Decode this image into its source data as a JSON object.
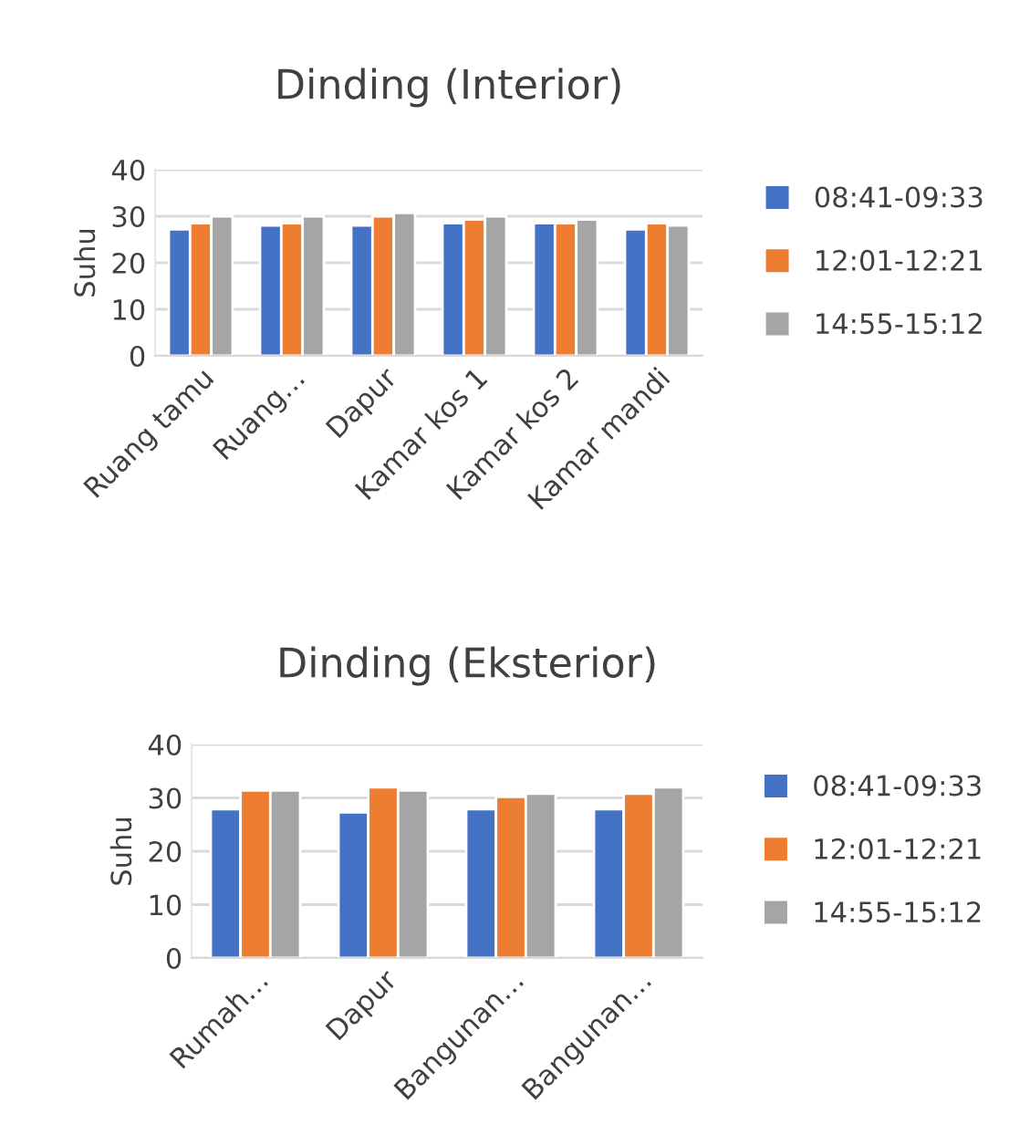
{
  "chart_data": [
    {
      "type": "bar",
      "title": "Dinding (Interior)",
      "ylabel": "Suhu",
      "categories": [
        "Ruang tamu",
        "Ruang…",
        "Dapur",
        "Kamar kos 1",
        "Kamar kos 2",
        "Kamar mandi"
      ],
      "series": [
        {
          "name": "08:41-09:33",
          "color": "#4472c4",
          "values": [
            27.2,
            28,
            28,
            28.5,
            28.5,
            27.2
          ]
        },
        {
          "name": "12:01-12:21",
          "color": "#ed7d31",
          "values": [
            28.5,
            28.5,
            30,
            29.3,
            28.5,
            28.5
          ]
        },
        {
          "name": "14:55-15:12",
          "color": "#a5a5a5",
          "values": [
            30,
            30,
            30.7,
            30,
            29.3,
            28
          ]
        }
      ],
      "ylim": [
        0,
        40
      ],
      "yticks": [
        0,
        10,
        20,
        30,
        40
      ],
      "grid": "y",
      "legend": "right"
    },
    {
      "type": "bar",
      "title": "Dinding (Eksterior)",
      "ylabel": "Suhu",
      "categories": [
        "Rumah…",
        "Dapur",
        "Bangunan…",
        "Bangunan…"
      ],
      "series": [
        {
          "name": "08:41-09:33",
          "color": "#4472c4",
          "values": [
            27.9,
            27.3,
            27.9,
            27.9
          ]
        },
        {
          "name": "12:01-12:21",
          "color": "#ed7d31",
          "values": [
            31.4,
            32,
            30.2,
            30.8
          ]
        },
        {
          "name": "14:55-15:12",
          "color": "#a5a5a5",
          "values": [
            31.4,
            31.4,
            30.8,
            32
          ]
        }
      ],
      "ylim": [
        0,
        40
      ],
      "yticks": [
        0,
        10,
        20,
        30,
        40
      ],
      "grid": "y",
      "legend": "right"
    }
  ]
}
